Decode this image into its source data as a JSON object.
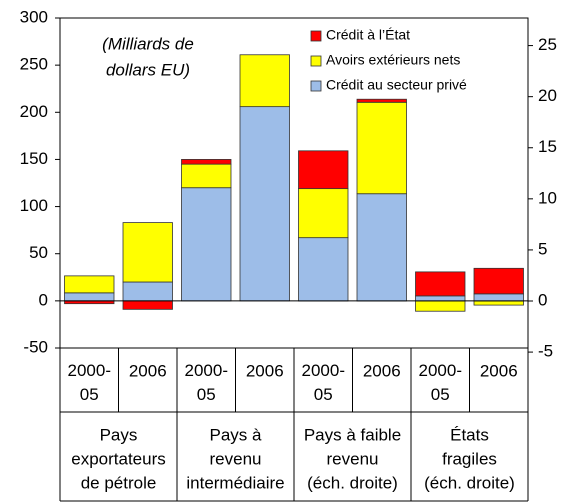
{
  "chart_data": {
    "type": "bar",
    "stacked": true,
    "annotation": [
      "(Milliards de",
      "dollars EU)"
    ],
    "categories": [
      "2000-05",
      "2006",
      "2000-05",
      "2006",
      "2000-05",
      "2006",
      "2000-05",
      "2006"
    ],
    "axis_by_category": [
      "y",
      "y",
      "y",
      "y",
      "y2",
      "y2",
      "y2",
      "y2"
    ],
    "groups": [
      {
        "lines": [
          "Pays",
          "exportateurs",
          "de pétrole"
        ],
        "span": 2
      },
      {
        "lines": [
          "Pays à",
          "revenu",
          "intermédiaire"
        ],
        "span": 2
      },
      {
        "lines": [
          "Pays à faible",
          "revenu",
          "(éch. droite)"
        ],
        "span": 2
      },
      {
        "lines": [
          "États",
          "fragiles",
          "(éch. droite)"
        ],
        "span": 2
      }
    ],
    "series": [
      {
        "name": "Crédit au secteur privé",
        "color": "#9dbde8",
        "values": [
          8.5,
          20,
          120,
          206,
          6.2,
          10.5,
          0.5,
          0.7
        ]
      },
      {
        "name": "Avoirs extérieurs nets",
        "color": "#ffff00",
        "values": [
          18,
          63,
          25,
          55,
          4.8,
          8.95,
          -1.0,
          -0.4
        ]
      },
      {
        "name": "Crédit à l’État",
        "color": "#ff0000",
        "values": [
          -3,
          -9,
          5,
          0,
          3.7,
          0.3,
          2.35,
          2.5
        ]
      }
    ],
    "ylim": [
      -50,
      300
    ],
    "yticks": [
      -50,
      0,
      50,
      100,
      150,
      200,
      250,
      300
    ],
    "y2lim": [
      -4.6,
      27.7
    ],
    "y2ticks": [
      -5,
      0,
      5,
      10,
      15,
      20,
      25
    ],
    "legend": "top-right"
  }
}
